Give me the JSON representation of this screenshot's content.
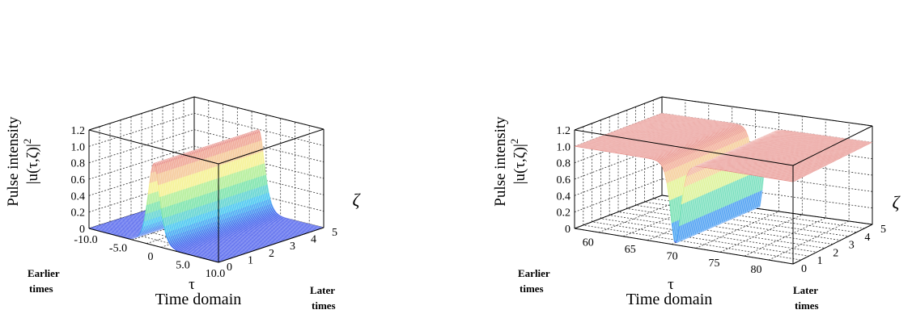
{
  "chart_data": [
    {
      "type": "surface",
      "zlabel": [
        "Pulse intensity",
        "|u(τ,ζ)|",
        "2"
      ],
      "xlabel": "Time domain",
      "xsymbol": "τ",
      "ysymbol": "ζ",
      "earlier_label": [
        "Earlier",
        "times"
      ],
      "later_label": [
        "Later",
        "times"
      ],
      "z_ticks": [
        "0",
        "0.2",
        "0.4",
        "0.6",
        "0.8",
        "1.0",
        "1.2"
      ],
      "x_ticks": [
        "-10.0",
        "-5.0",
        "0",
        "5.0",
        "10.0"
      ],
      "y_ticks": [
        "0",
        "1",
        "2",
        "3",
        "4",
        "5"
      ],
      "xlim": [
        -10,
        10
      ],
      "ylim": [
        0,
        5
      ],
      "zlim": [
        0,
        1.2
      ],
      "profile": {
        "shape": "bright-sech2",
        "background": 0,
        "peak": 1.0,
        "center": 0,
        "width": 1.2
      },
      "grid": true
    },
    {
      "type": "surface",
      "zlabel": [
        "Pulse intensity",
        "|u(τ,ζ)|",
        "2"
      ],
      "xlabel": "Time domain",
      "xsymbol": "τ",
      "ysymbol": "ζ",
      "earlier_label": [
        "Earlier",
        "times"
      ],
      "later_label": [
        "Later",
        "times"
      ],
      "z_ticks": [
        "0",
        "0.2",
        "0.4",
        "0.6",
        "0.8",
        "1.0",
        "1.2"
      ],
      "x_ticks": [
        "60",
        "65",
        "70",
        "75",
        "80"
      ],
      "y_ticks": [
        "0",
        "1",
        "2",
        "3",
        "4",
        "5"
      ],
      "xlim": [
        58,
        84
      ],
      "ylim": [
        0,
        5
      ],
      "zlim": [
        0,
        1.2
      ],
      "profile": {
        "shape": "dark-tanh2",
        "background": 1.0,
        "minimum": 0,
        "center": 70,
        "width": 0.8
      },
      "grid": true
    }
  ]
}
